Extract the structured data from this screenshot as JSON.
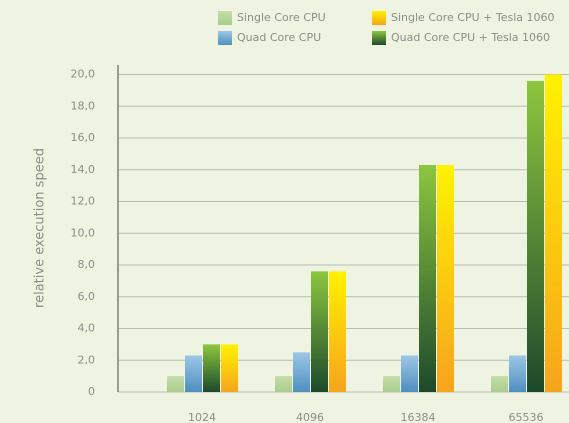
{
  "chart_data": {
    "type": "bar",
    "y_label": "relative execution speed",
    "categories": [
      "1024",
      "4096",
      "16384",
      "65536"
    ],
    "series": [
      {
        "name": "Single Core CPU",
        "color": [
          "#c4dea8",
          "#a9cc8c"
        ],
        "values": [
          1.0,
          1.0,
          1.0,
          1.0
        ]
      },
      {
        "name": "Quad Core CPU",
        "color": [
          "#9cc7e6",
          "#4f8fc0"
        ],
        "values": [
          2.3,
          2.5,
          2.3,
          2.3
        ]
      },
      {
        "name": "Single Core CPU + Tesla 1060",
        "color": [
          "#fff200",
          "#f7a41d"
        ],
        "values": [
          3.0,
          7.6,
          14.3,
          20.0
        ]
      },
      {
        "name": "Quad Core CPU + Tesla 1060",
        "color": [
          "#8dc63f",
          "#1c4a2c"
        ],
        "values": [
          3.0,
          7.6,
          14.3,
          19.6
        ]
      }
    ],
    "ylim": [
      0,
      20.6
    ],
    "yticks": [
      0,
      {
        "value": 2,
        "label": "2,0"
      },
      {
        "value": 4,
        "label": "4,0"
      },
      {
        "value": 6,
        "label": "6,0"
      },
      {
        "value": 8,
        "label": "8,0"
      },
      {
        "value": 10,
        "label": "10,0"
      },
      {
        "value": 12,
        "label": "12,0"
      },
      {
        "value": 14,
        "label": "14,0"
      },
      {
        "value": 16,
        "label": "16,0"
      },
      {
        "value": 18,
        "label": "18,0"
      },
      {
        "value": 20,
        "label": "20,0"
      }
    ],
    "grid": true
  }
}
